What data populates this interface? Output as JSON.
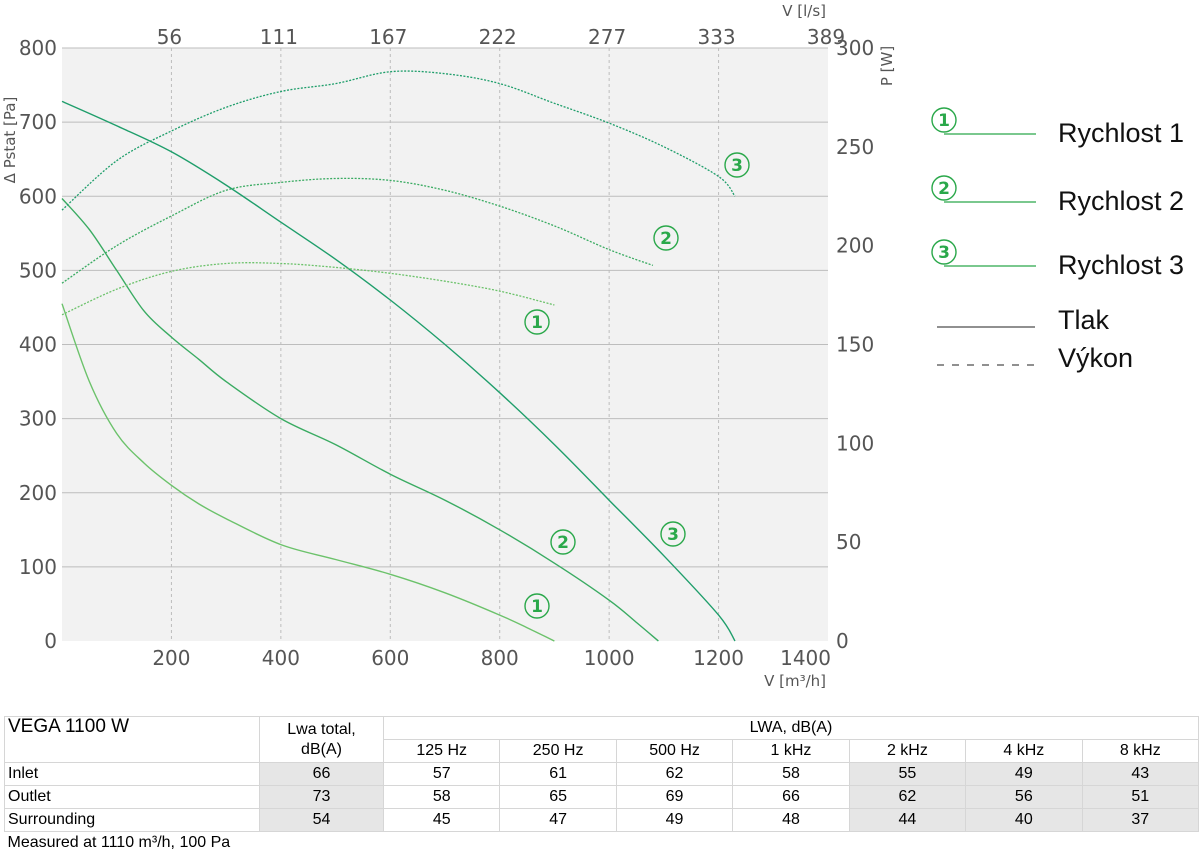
{
  "chart_data": {
    "type": "line",
    "x_axis": {
      "label": "V [m³/h]",
      "range": [
        0,
        1400
      ],
      "ticks": [
        200,
        400,
        600,
        800,
        1000,
        1200,
        1400
      ]
    },
    "x_top_axis": {
      "label": "V [l/s]",
      "ticks": [
        "56",
        "111",
        "167",
        "222",
        "277",
        "333",
        "389"
      ]
    },
    "y_left_axis": {
      "label": "Δ Pstat [Pa]",
      "range": [
        0,
        800
      ],
      "ticks": [
        0,
        100,
        200,
        300,
        400,
        500,
        600,
        700,
        800
      ]
    },
    "y_right_axis": {
      "label": "P [W]",
      "range": [
        0,
        300
      ],
      "ticks": [
        0,
        50,
        100,
        150,
        200,
        250,
        300
      ]
    },
    "grid": true,
    "series": [
      {
        "name": "Rychlost 1",
        "kind": "pressure",
        "axis": "left",
        "marker": "1",
        "x": [
          0,
          50,
          100,
          150,
          200,
          250,
          300,
          400,
          500,
          600,
          700,
          800,
          850,
          900
        ],
        "y": [
          455,
          350,
          280,
          240,
          210,
          185,
          165,
          130,
          110,
          90,
          65,
          35,
          18,
          0
        ]
      },
      {
        "name": "Rychlost 2",
        "kind": "pressure",
        "axis": "left",
        "marker": "2",
        "x": [
          0,
          50,
          100,
          150,
          200,
          250,
          300,
          400,
          500,
          600,
          700,
          800,
          900,
          1000,
          1050,
          1090
        ],
        "y": [
          597,
          555,
          500,
          445,
          410,
          380,
          350,
          300,
          265,
          225,
          190,
          150,
          105,
          55,
          25,
          0
        ]
      },
      {
        "name": "Rychlost 3",
        "kind": "pressure",
        "axis": "left",
        "marker": "3",
        "x": [
          0,
          100,
          200,
          300,
          400,
          500,
          600,
          700,
          800,
          900,
          1000,
          1100,
          1200,
          1230
        ],
        "y": [
          728,
          695,
          660,
          615,
          565,
          515,
          460,
          400,
          335,
          265,
          190,
          115,
          35,
          0
        ]
      },
      {
        "name": "Rychlost 1",
        "kind": "power",
        "axis": "right",
        "marker": "1",
        "x": [
          0,
          100,
          200,
          300,
          400,
          500,
          600,
          700,
          800,
          900
        ],
        "y": [
          165,
          178,
          187,
          191,
          191,
          189,
          186,
          182,
          177,
          170
        ]
      },
      {
        "name": "Rychlost 2",
        "kind": "power",
        "axis": "right",
        "marker": "2",
        "x": [
          0,
          100,
          200,
          300,
          400,
          500,
          600,
          700,
          800,
          900,
          1000,
          1080
        ],
        "y": [
          181,
          200,
          215,
          228,
          232,
          234,
          233,
          228,
          220,
          210,
          198,
          190
        ]
      },
      {
        "name": "Rychlost 3",
        "kind": "power",
        "axis": "right",
        "marker": "3",
        "x": [
          0,
          100,
          200,
          300,
          400,
          500,
          600,
          700,
          800,
          900,
          1000,
          1100,
          1200,
          1230
        ],
        "y": [
          218,
          243,
          258,
          270,
          278,
          282,
          288,
          287,
          282,
          272,
          262,
          250,
          235,
          225
        ]
      }
    ],
    "legend": {
      "placement": "right",
      "entries": [
        {
          "symbol": "1",
          "label": "Rychlost 1",
          "color": "#2aa84a"
        },
        {
          "symbol": "2",
          "label": "Rychlost 2",
          "color": "#2aa84a"
        },
        {
          "symbol": "3",
          "label": "Rychlost 3",
          "color": "#2aa84a"
        },
        {
          "symbol": "solid",
          "label": "Tlak",
          "color": "#222222"
        },
        {
          "symbol": "dashed",
          "label": "Výkon",
          "color": "#222222"
        }
      ]
    },
    "colors": {
      "speed1": "#6cc26b",
      "speed2": "#3aab62",
      "speed3": "#1f9e6b",
      "marker": "#2aa84a",
      "plot_bg": "#f2f2f2",
      "grid": "#bdbdbd"
    }
  },
  "table": {
    "title": "VEGA 1100 W",
    "lwa_total_header": "Lwa total,",
    "lwa_total_unit": "dB(A)",
    "lwa_header": "LWA, dB(A)",
    "bands": [
      "125 Hz",
      "250 Hz",
      "500 Hz",
      "1 kHz",
      "2 kHz",
      "4 kHz",
      "8 kHz"
    ],
    "rows": [
      {
        "label": "Inlet",
        "total": "66",
        "values": [
          "57",
          "61",
          "62",
          "58",
          "55",
          "49",
          "43"
        ]
      },
      {
        "label": "Outlet",
        "total": "73",
        "values": [
          "58",
          "65",
          "69",
          "66",
          "62",
          "56",
          "51"
        ]
      },
      {
        "label": "Surrounding",
        "total": "54",
        "values": [
          "45",
          "47",
          "49",
          "48",
          "44",
          "40",
          "37"
        ]
      }
    ],
    "footnote": "Measured at 1110 m³/h, 100 Pa"
  }
}
